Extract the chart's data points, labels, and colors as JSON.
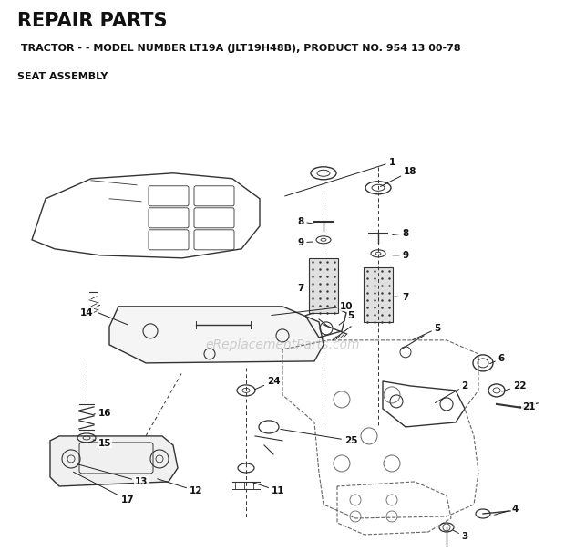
{
  "title": "REPAIR PARTS",
  "subtitle": " TRACTOR - - MODEL NUMBER LT19A (JLT19H48B), PRODUCT NO. 954 13 00-78",
  "section": "SEAT ASSEMBLY",
  "watermark": "eReplacementParts.com",
  "bg_color": "#ffffff",
  "line_color": "#333333"
}
